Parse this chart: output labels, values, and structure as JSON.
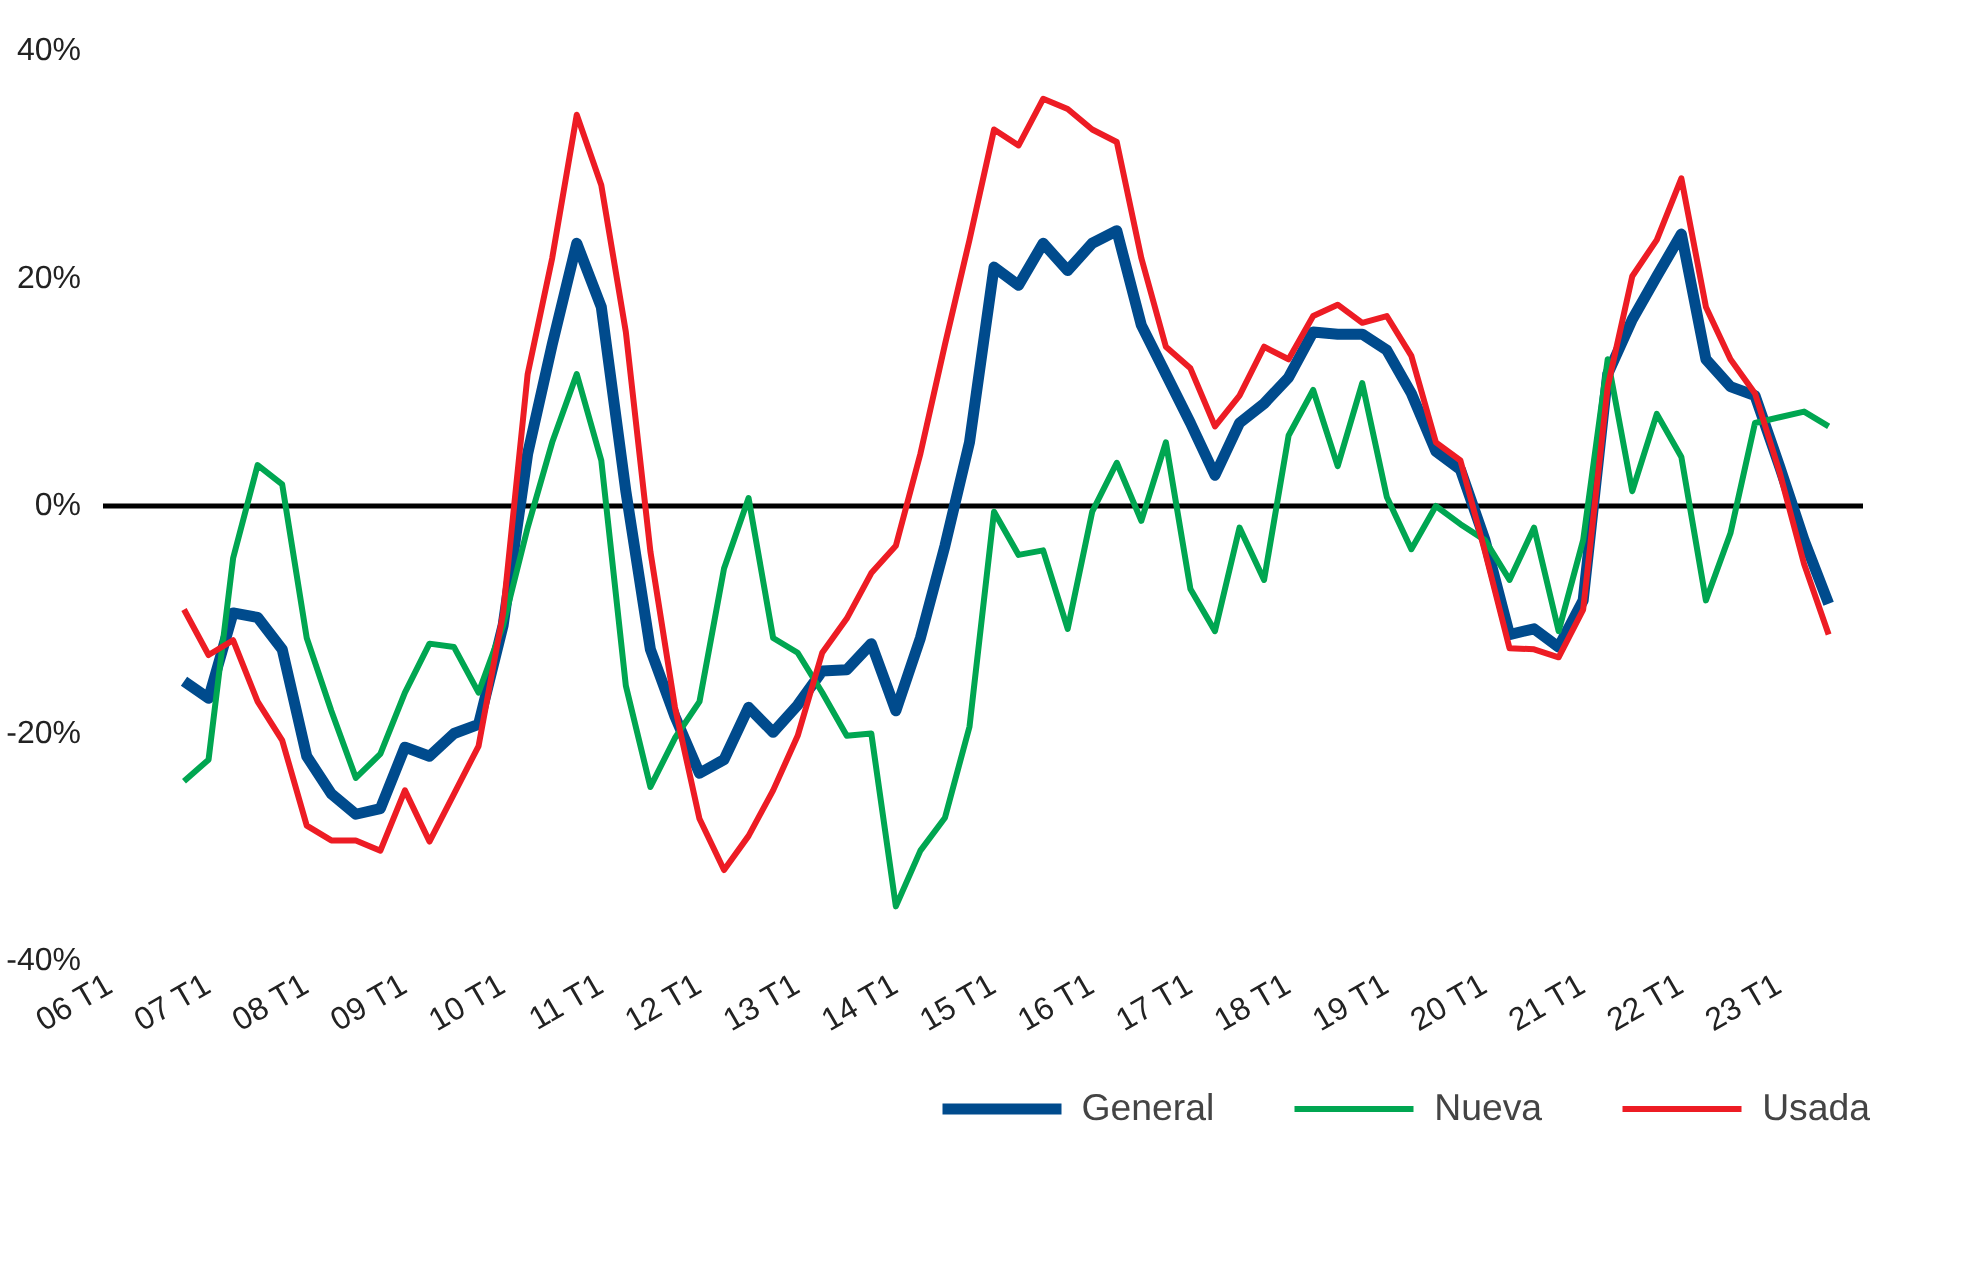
{
  "chart_data": {
    "type": "line",
    "categories": [
      "06 T1",
      null,
      null,
      null,
      "07 T1",
      null,
      null,
      null,
      "08 T1",
      null,
      null,
      null,
      "09 T1",
      null,
      null,
      null,
      "10 T1",
      null,
      null,
      null,
      "11 T1",
      null,
      null,
      null,
      "12 T1",
      null,
      null,
      null,
      "13 T1",
      null,
      null,
      null,
      "14 T1",
      null,
      null,
      null,
      "15 T1",
      null,
      null,
      null,
      "16 T1",
      null,
      null,
      null,
      "17 T1",
      null,
      null,
      null,
      "18 T1",
      null,
      null,
      null,
      "19 T1",
      null,
      null,
      null,
      "20 T1",
      null,
      null,
      null,
      "21 T1",
      null,
      null,
      null,
      "22 T1",
      null,
      null,
      null,
      "23 T1",
      null,
      null,
      null
    ],
    "series": [
      {
        "name": "General",
        "color": "#004b8d",
        "values": [
          null,
          null,
          null,
          -15.4,
          -16.9,
          -9.4,
          -9.8,
          -12.6,
          -22,
          -25.3,
          -27.1,
          -26.6,
          -21.2,
          -22,
          -20,
          -19.2,
          -10.5,
          4.6,
          14.2,
          23.1,
          17.5,
          1.3,
          -12.6,
          -18.5,
          -23.5,
          -22.3,
          -17.7,
          -19.9,
          -17.5,
          -14.5,
          -14.4,
          -12.1,
          -18,
          -11.6,
          -3.5,
          5.6,
          21,
          19.4,
          23.1,
          20.7,
          23.1,
          24.2,
          15.9,
          11.6,
          7.3,
          2.7,
          7.3,
          9,
          11.3,
          15.3,
          15.1,
          15.1,
          13.7,
          9.9,
          4.8,
          3.2,
          -3,
          -11.3,
          -10.8,
          -12.4,
          -8.3,
          11.6,
          16.4,
          20.2,
          23.9,
          12.9,
          10.5,
          9.7,
          3.5,
          -3,
          -8.6,
          null
        ]
      },
      {
        "name": "Nueva",
        "color": "#00a651",
        "values": [
          null,
          null,
          null,
          -24.2,
          -22.3,
          -4.6,
          3.6,
          1.9,
          -11.6,
          -18,
          -23.9,
          -21.8,
          -16.4,
          -12.1,
          -12.4,
          -16.4,
          -10.5,
          -1.9,
          5.6,
          11.6,
          4,
          -15.8,
          -24.7,
          -20.4,
          -17.2,
          -5.5,
          0.7,
          -11.6,
          -12.9,
          -16.4,
          -20.2,
          -20,
          -35.2,
          -30.3,
          -27.4,
          -19.4,
          -0.5,
          -4.3,
          -3.9,
          -10.8,
          -0.5,
          3.8,
          -1.3,
          5.6,
          -7.3,
          -11,
          -1.9,
          -6.5,
          6.2,
          10.2,
          3.5,
          10.8,
          0.8,
          -3.8,
          0,
          -1.6,
          -3,
          -6.5,
          -1.9,
          -11,
          -3,
          12.9,
          1.3,
          8.1,
          4.3,
          -8.3,
          -2.4,
          7.3,
          7.8,
          8.3,
          7,
          null
        ]
      },
      {
        "name": "Usada",
        "color": "#ed1c24",
        "values": [
          null,
          null,
          null,
          -9.1,
          -13.1,
          -11.8,
          -17.2,
          -20.6,
          -28.1,
          -29.4,
          -29.4,
          -30.3,
          -25,
          -29.5,
          -25.3,
          -21.1,
          -9.4,
          11.6,
          21.8,
          34.4,
          28.2,
          15.3,
          -4,
          -17.7,
          -27.5,
          -32,
          -29,
          -25,
          -20.2,
          -12.9,
          -9.9,
          -5.9,
          -3.5,
          4.6,
          14.2,
          23.4,
          33.1,
          31.7,
          35.8,
          34.9,
          33.1,
          32,
          21.8,
          14,
          12.1,
          7,
          9.7,
          14,
          12.9,
          16.7,
          17.7,
          16.1,
          16.7,
          13.2,
          5.6,
          4,
          -4,
          -12.5,
          -12.6,
          -13.3,
          -9.1,
          10.5,
          20.2,
          23.4,
          28.8,
          17.5,
          12.9,
          9.9,
          3,
          -5.1,
          -11.3,
          null
        ]
      }
    ],
    "ylim": [
      -40,
      40
    ],
    "yticks": [
      {
        "value": -40,
        "label": "-40%"
      },
      {
        "value": -20,
        "label": "-20%"
      },
      {
        "value": 0,
        "label": "0%"
      },
      {
        "value": 20,
        "label": "20%"
      },
      {
        "value": 40,
        "label": "40%"
      }
    ],
    "ref_lines": [
      {
        "axis": "y",
        "value": 0,
        "color": "#000000"
      }
    ],
    "grid": false,
    "legend": "bottom right",
    "marker": "none",
    "line_style": "solid"
  }
}
